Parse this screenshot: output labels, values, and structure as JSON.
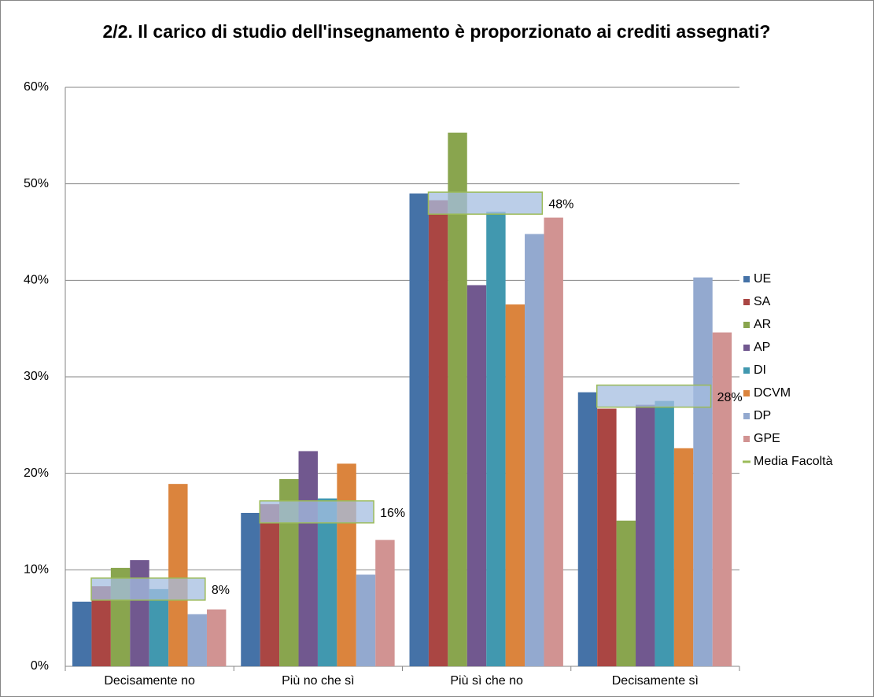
{
  "chart_data": {
    "type": "bar",
    "title": "2/2. Il carico di studio dell'insegnamento è proporzionato ai crediti assegnati?",
    "categories": [
      "Decisamente no",
      "Più no che sì",
      "Più sì che no",
      "Decisamente sì"
    ],
    "series": [
      {
        "name": "UE",
        "color": "#4572a7",
        "values": [
          6.7,
          15.9,
          49.0,
          28.4
        ]
      },
      {
        "name": "SA",
        "color": "#aa4643",
        "values": [
          8.3,
          16.8,
          48.3,
          26.7
        ]
      },
      {
        "name": "AR",
        "color": "#89a54e",
        "values": [
          10.2,
          19.4,
          55.3,
          15.1
        ]
      },
      {
        "name": "AP",
        "color": "#71588f",
        "values": [
          11.0,
          22.3,
          39.5,
          27.1
        ]
      },
      {
        "name": "DI",
        "color": "#4198af",
        "values": [
          8.0,
          17.4,
          47.1,
          27.5
        ]
      },
      {
        "name": "DCVM",
        "color": "#db843d",
        "values": [
          18.9,
          21.0,
          37.5,
          22.6
        ]
      },
      {
        "name": "DP",
        "color": "#93a9cf",
        "values": [
          5.4,
          9.5,
          44.8,
          40.3
        ]
      },
      {
        "name": "GPE",
        "color": "#d19392",
        "values": [
          5.9,
          13.1,
          46.5,
          34.6
        ]
      },
      {
        "name": "Media Facoltà",
        "color": "#9bbb59",
        "fill": "#a4bee0",
        "values": [
          8,
          16,
          48,
          28
        ],
        "value_labels": [
          "8%",
          "16%",
          "48%",
          "28%"
        ]
      }
    ],
    "ylim": [
      0,
      60
    ],
    "yticks": [
      {
        "value": 0,
        "label": "0%"
      },
      {
        "value": 10,
        "label": "10%"
      },
      {
        "value": 20,
        "label": "20%"
      },
      {
        "value": 30,
        "label": "30%"
      },
      {
        "value": 40,
        "label": "40%"
      },
      {
        "value": 50,
        "label": "50%"
      },
      {
        "value": 60,
        "label": "60%"
      }
    ],
    "grid": true,
    "legend": "right"
  }
}
